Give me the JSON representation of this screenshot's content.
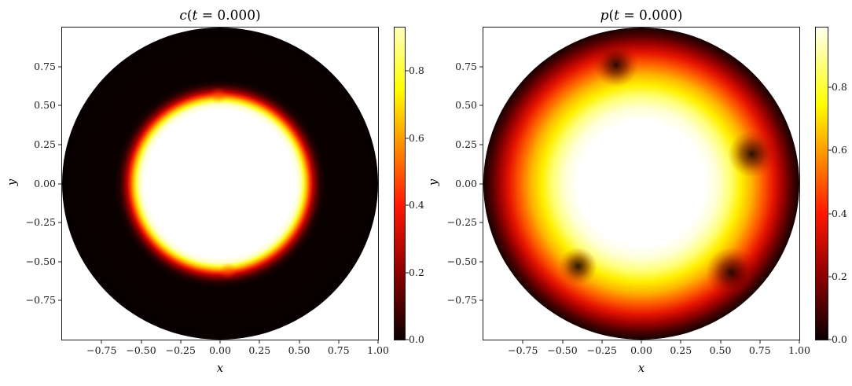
{
  "figure": {
    "background": "#ffffff",
    "colormap": "hot",
    "time_label": "0.000"
  },
  "chart_data": [
    {
      "type": "heatmap",
      "title": "c(t = 0.000)",
      "title_parts": [
        [
          "c",
          true
        ],
        [
          "(",
          false
        ],
        [
          "t",
          true
        ],
        [
          " = 0.000)",
          false
        ]
      ],
      "xlabel": "x",
      "ylabel": "y",
      "xlim": [
        -1,
        1
      ],
      "ylim": [
        -1,
        1
      ],
      "colormap": "hot",
      "domain_shape": "disk of radius 1 centered at origin, white figure background outside",
      "field_description": "phase field c = 1 (white) inside circle r < 0.50, sharp hot-colormap interface over 0.50 < r < 0.64, c = 0 (black) out to disk rim",
      "radial_profile": [
        {
          "r": 0.0,
          "v": 1.0
        },
        {
          "r": 0.5,
          "v": 1.0
        },
        {
          "r": 0.545,
          "v": 0.75
        },
        {
          "r": 0.57,
          "v": 0.5
        },
        {
          "r": 0.6,
          "v": 0.25
        },
        {
          "r": 0.64,
          "v": 0.0
        },
        {
          "r": 1.0,
          "v": 0.0
        }
      ],
      "xticks": [
        {
          "label": "−0.75",
          "value": -0.75
        },
        {
          "label": "−0.50",
          "value": -0.5
        },
        {
          "label": "−0.25",
          "value": -0.25
        },
        {
          "label": "0.00",
          "value": 0.0
        },
        {
          "label": "0.25",
          "value": 0.25
        },
        {
          "label": "0.50",
          "value": 0.5
        },
        {
          "label": "0.75",
          "value": 0.75
        },
        {
          "label": "1.00",
          "value": 1.0
        }
      ],
      "yticks": [
        {
          "label": "0.75",
          "value": 0.75
        },
        {
          "label": "0.50",
          "value": 0.5
        },
        {
          "label": "0.25",
          "value": 0.25
        },
        {
          "label": "0.00",
          "value": 0.0
        },
        {
          "label": "−0.25",
          "value": -0.25
        },
        {
          "label": "−0.50",
          "value": -0.5
        },
        {
          "label": "−0.75",
          "value": -0.75
        }
      ],
      "disk_render": {
        "radial_stops": [
          [
            0.0,
            "#ffffff"
          ],
          [
            0.475,
            "#ffffff"
          ],
          [
            0.51,
            "#ffffc4"
          ],
          [
            0.53,
            "#ffff2e"
          ],
          [
            0.55,
            "#ffb000"
          ],
          [
            0.568,
            "#ff3c00"
          ],
          [
            0.588,
            "#bd0000"
          ],
          [
            0.61,
            "#640000"
          ],
          [
            0.635,
            "#230000"
          ],
          [
            0.665,
            "#0b0000"
          ],
          [
            1.0,
            "#080000"
          ]
        ],
        "bumps": [
          {
            "x": -0.01,
            "y": 0.565,
            "r": 0.055
          },
          {
            "x": 0.05,
            "y": -0.56,
            "r": 0.055
          }
        ],
        "bump_stops": [
          [
            0,
            "rgba(255,80,0,0.5)"
          ],
          [
            1,
            "rgba(255,80,0,0)"
          ]
        ]
      },
      "colorbar": {
        "vmin": 0.0,
        "vmax": 0.93,
        "ticks": [
          {
            "label": "0.0",
            "value": 0.0
          },
          {
            "label": "0.2",
            "value": 0.2
          },
          {
            "label": "0.4",
            "value": 0.4
          },
          {
            "label": "0.6",
            "value": 0.6
          },
          {
            "label": "0.8",
            "value": 0.8
          }
        ],
        "gradient_stops": [
          [
            0.0,
            "#0b0000"
          ],
          [
            0.215,
            "#8c0000"
          ],
          [
            0.43,
            "#ff1700"
          ],
          [
            0.645,
            "#ff9d00"
          ],
          [
            0.802,
            "#ffff00"
          ],
          [
            1.0,
            "#ffffbe"
          ]
        ]
      }
    },
    {
      "type": "heatmap",
      "title": "p(t = 0.000)",
      "title_parts": [
        [
          "p",
          true
        ],
        [
          "(",
          false
        ],
        [
          "t",
          true
        ],
        [
          " = 0.000)",
          false
        ]
      ],
      "xlabel": "x",
      "ylabel": "y",
      "xlim": [
        -1,
        1
      ],
      "ylim": [
        -1,
        1
      ],
      "colormap": "hot",
      "domain_shape": "disk of radius 1 centered at origin, white figure background outside",
      "field_description": "pressure-like field p: ~1 (white) core r < 0.45, smooth diffuse decay through yellow/orange/red to ~0 (black) at disk rim, with four localized dark sink spots",
      "radial_profile": [
        {
          "r": 0.0,
          "v": 1.0
        },
        {
          "r": 0.43,
          "v": 1.0
        },
        {
          "r": 0.55,
          "v": 0.93
        },
        {
          "r": 0.63,
          "v": 0.78
        },
        {
          "r": 0.7,
          "v": 0.62
        },
        {
          "r": 0.77,
          "v": 0.45
        },
        {
          "r": 0.84,
          "v": 0.3
        },
        {
          "r": 0.9,
          "v": 0.18
        },
        {
          "r": 1.0,
          "v": 0.03
        }
      ],
      "xticks": [
        {
          "label": "−0.75",
          "value": -0.75
        },
        {
          "label": "−0.50",
          "value": -0.5
        },
        {
          "label": "−0.25",
          "value": -0.25
        },
        {
          "label": "0.00",
          "value": 0.0
        },
        {
          "label": "0.25",
          "value": 0.25
        },
        {
          "label": "0.50",
          "value": 0.5
        },
        {
          "label": "0.75",
          "value": 0.75
        },
        {
          "label": "1.00",
          "value": 1.0
        }
      ],
      "yticks": [
        {
          "label": "0.75",
          "value": 0.75
        },
        {
          "label": "0.50",
          "value": 0.5
        },
        {
          "label": "0.25",
          "value": 0.25
        },
        {
          "label": "0.00",
          "value": 0.0
        },
        {
          "label": "−0.25",
          "value": -0.25
        },
        {
          "label": "−0.50",
          "value": -0.5
        },
        {
          "label": "−0.75",
          "value": -0.75
        }
      ],
      "disk_render": {
        "radial_stops": [
          [
            0.0,
            "#ffffff"
          ],
          [
            0.4,
            "#ffffff"
          ],
          [
            0.48,
            "#ffffd8"
          ],
          [
            0.56,
            "#ffff7a"
          ],
          [
            0.63,
            "#fff000"
          ],
          [
            0.7,
            "#ffb400"
          ],
          [
            0.77,
            "#ff5e00"
          ],
          [
            0.84,
            "#e51300"
          ],
          [
            0.9,
            "#9b0000"
          ],
          [
            0.95,
            "#4e0000"
          ],
          [
            1.0,
            "#160000"
          ]
        ],
        "sinks": [
          {
            "x": -0.16,
            "y": 0.76,
            "r": 0.14
          },
          {
            "x": 0.7,
            "y": 0.19,
            "r": 0.15
          },
          {
            "x": -0.4,
            "y": -0.53,
            "r": 0.12
          },
          {
            "x": 0.57,
            "y": -0.57,
            "r": 0.16
          }
        ],
        "sink_stops": [
          [
            0,
            "rgba(20,0,0,0.9)"
          ],
          [
            0.45,
            "rgba(80,0,0,0.55)"
          ],
          [
            0.75,
            "rgba(130,10,0,0.22)"
          ],
          [
            1,
            "rgba(130,10,0,0)"
          ]
        ]
      },
      "colorbar": {
        "vmin": 0.0,
        "vmax": 0.99,
        "ticks": [
          {
            "label": "0.0",
            "value": 0.0
          },
          {
            "label": "0.2",
            "value": 0.2
          },
          {
            "label": "0.4",
            "value": 0.4
          },
          {
            "label": "0.6",
            "value": 0.6
          },
          {
            "label": "0.8",
            "value": 0.8
          }
        ],
        "gradient_stops": [
          [
            0.0,
            "#0b0000"
          ],
          [
            0.202,
            "#8c0000"
          ],
          [
            0.404,
            "#ff1700"
          ],
          [
            0.606,
            "#ff9d00"
          ],
          [
            0.754,
            "#ffff00"
          ],
          [
            1.0,
            "#fffff0"
          ]
        ]
      }
    }
  ]
}
